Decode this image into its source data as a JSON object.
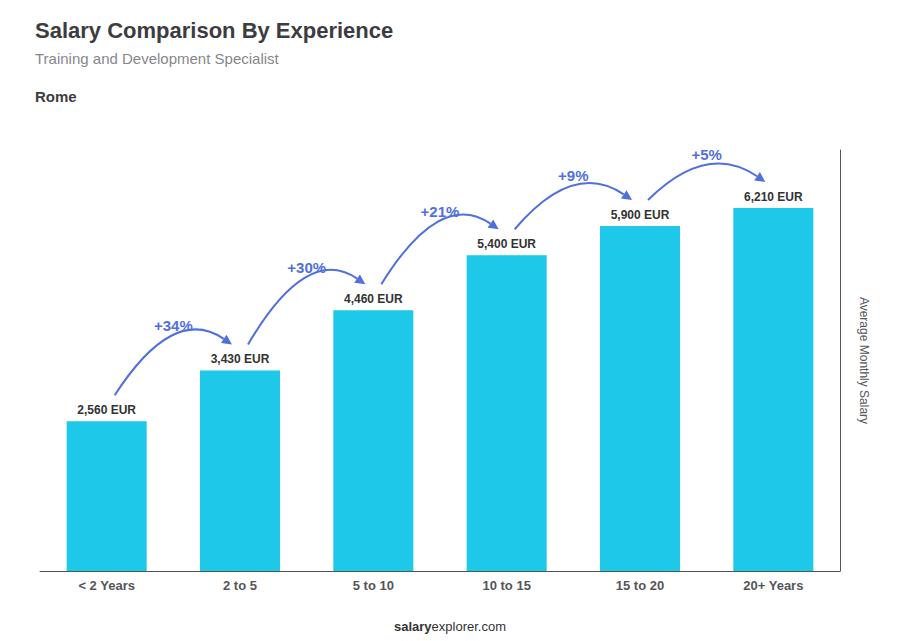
{
  "chart_data": {
    "type": "bar",
    "title": "Salary Comparison By Experience",
    "subtitle": "Training and Development Specialist",
    "city": "Rome",
    "categories": [
      "< 2 Years",
      "2 to 5",
      "5 to 10",
      "10 to 15",
      "15 to 20",
      "20+ Years"
    ],
    "values": [
      2560,
      3430,
      4460,
      5400,
      5900,
      6210
    ],
    "value_labels": [
      "2,560 EUR",
      "3,430 EUR",
      "4,460 EUR",
      "5,400 EUR",
      "5,900 EUR",
      "6,210 EUR"
    ],
    "data_labels": true,
    "color": "#1ec8e8",
    "ylabel": "Average Monthly Salary",
    "ylim": [
      0,
      7200
    ],
    "tick_labels": "x",
    "grid": false,
    "annotations": [
      "+34%",
      "+30%",
      "+21%",
      "+9%",
      "+5%"
    ],
    "footer": [
      "salary",
      "explorer.com"
    ]
  }
}
